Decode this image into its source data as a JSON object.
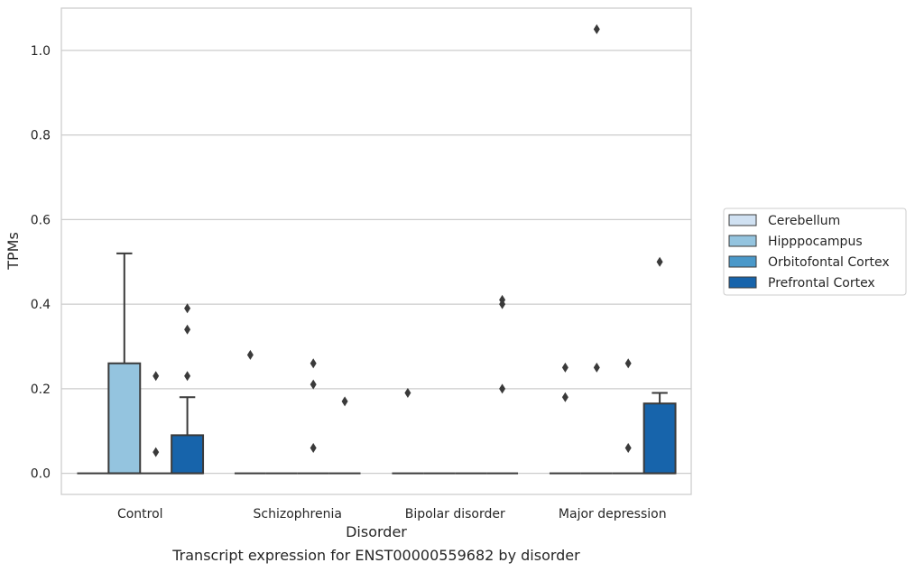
{
  "caption": "Transcript expression for ENST00000559682 by disorder",
  "chart_data": {
    "type": "box",
    "title": "",
    "xlabel": "Disorder",
    "ylabel": "TPMs",
    "ylim": [
      -0.05,
      1.1
    ],
    "yticks": [
      0.0,
      0.2,
      0.4,
      0.6,
      0.8,
      1.0
    ],
    "ytick_labels": [
      "0.0",
      "0.2",
      "0.4",
      "0.6",
      "0.8",
      "1.0"
    ],
    "grid": "horizontal",
    "legend_position": "right",
    "categories": [
      "Control",
      "Schizophrenia",
      "Bipolar disorder",
      "Major depression"
    ],
    "series": [
      {
        "name": "Cerebellum",
        "color": "#d0e1f2",
        "boxes": [
          {
            "q1": 0,
            "median": 0,
            "q3": 0,
            "whisker_low": 0,
            "whisker_high": 0,
            "outliers": []
          },
          {
            "q1": 0,
            "median": 0,
            "q3": 0,
            "whisker_low": 0,
            "whisker_high": 0,
            "outliers": [
              0.28
            ]
          },
          {
            "q1": 0,
            "median": 0,
            "q3": 0,
            "whisker_low": 0,
            "whisker_high": 0,
            "outliers": [
              0.19
            ]
          },
          {
            "q1": 0,
            "median": 0,
            "q3": 0,
            "whisker_low": 0,
            "whisker_high": 0,
            "outliers": [
              0.18,
              0.25
            ]
          }
        ]
      },
      {
        "name": "Hipppocampus",
        "color": "#94c4df",
        "boxes": [
          {
            "q1": 0,
            "median": 0,
            "q3": 0.26,
            "whisker_low": 0,
            "whisker_high": 0.52,
            "outliers": []
          },
          {
            "q1": 0,
            "median": 0,
            "q3": 0,
            "whisker_low": 0,
            "whisker_high": 0,
            "outliers": []
          },
          {
            "q1": 0,
            "median": 0,
            "q3": 0,
            "whisker_low": 0,
            "whisker_high": 0,
            "outliers": []
          },
          {
            "q1": 0,
            "median": 0,
            "q3": 0,
            "whisker_low": 0,
            "whisker_high": 0,
            "outliers": [
              0.25,
              1.05
            ]
          }
        ]
      },
      {
        "name": "Orbitofontal Cortex",
        "color": "#4a98c9",
        "boxes": [
          {
            "q1": 0,
            "median": 0,
            "q3": 0,
            "whisker_low": 0,
            "whisker_high": 0,
            "outliers": [
              0.05,
              0.23
            ]
          },
          {
            "q1": 0,
            "median": 0,
            "q3": 0,
            "whisker_low": 0,
            "whisker_high": 0,
            "outliers": [
              0.06,
              0.21,
              0.26
            ]
          },
          {
            "q1": 0,
            "median": 0,
            "q3": 0,
            "whisker_low": 0,
            "whisker_high": 0,
            "outliers": []
          },
          {
            "q1": 0,
            "median": 0,
            "q3": 0,
            "whisker_low": 0,
            "whisker_high": 0,
            "outliers": [
              0.06,
              0.26
            ]
          }
        ]
      },
      {
        "name": "Prefrontal Cortex",
        "color": "#1764ab",
        "boxes": [
          {
            "q1": 0,
            "median": 0,
            "q3": 0.09,
            "whisker_low": 0,
            "whisker_high": 0.18,
            "outliers": [
              0.23,
              0.34,
              0.39
            ]
          },
          {
            "q1": 0,
            "median": 0,
            "q3": 0,
            "whisker_low": 0,
            "whisker_high": 0,
            "outliers": [
              0.17
            ]
          },
          {
            "q1": 0,
            "median": 0,
            "q3": 0,
            "whisker_low": 0,
            "whisker_high": 0,
            "outliers": [
              0.2,
              0.4,
              0.41
            ]
          },
          {
            "q1": 0,
            "median": 0,
            "q3": 0.165,
            "whisker_low": 0,
            "whisker_high": 0.19,
            "outliers": [
              0.5
            ]
          }
        ]
      }
    ]
  }
}
